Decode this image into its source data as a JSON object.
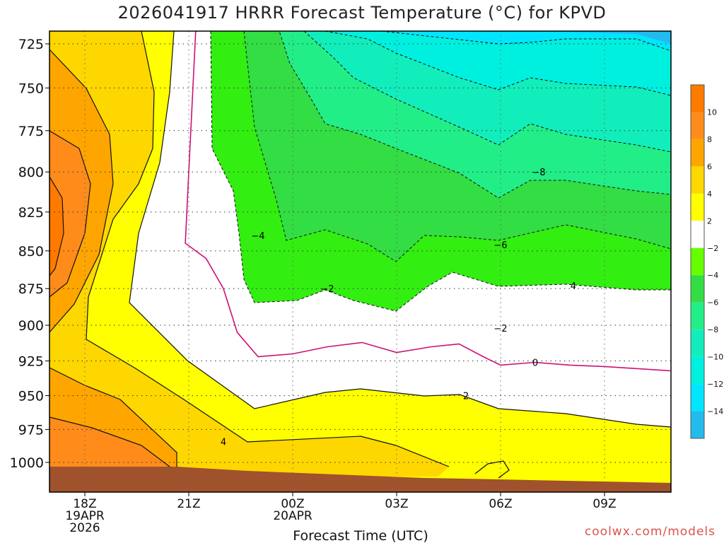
{
  "title": "2026041917 HRRR Forecast Temperature (°C) for KPVD",
  "credit": "coolwx.com/models",
  "chart_data": {
    "type": "contour",
    "title": "2026041917 HRRR Forecast Temperature (°C) for KPVD",
    "xlabel": "Forecast Time (UTC)",
    "ylabel": "",
    "y_scale": "log-pressure",
    "ylim": [
      1020,
      715
    ],
    "x_ticks": [
      {
        "h": 18,
        "label": "18Z",
        "sub1": "19APR",
        "sub2": "2026"
      },
      {
        "h": 21,
        "label": "21Z",
        "sub1": "",
        "sub2": ""
      },
      {
        "h": 24,
        "label": "00Z",
        "sub1": "20APR",
        "sub2": ""
      },
      {
        "h": 27,
        "label": "03Z",
        "sub1": "",
        "sub2": ""
      },
      {
        "h": 30,
        "label": "06Z",
        "sub1": "",
        "sub2": ""
      },
      {
        "h": 33,
        "label": "09Z",
        "sub1": "",
        "sub2": ""
      }
    ],
    "y_ticks": [
      "725",
      "750",
      "775",
      "800",
      "825",
      "850",
      "875",
      "900",
      "925",
      "950",
      "975",
      "1000"
    ],
    "colorbar_labels": [
      "10",
      "8",
      "6",
      "4",
      "2",
      "−2",
      "−4",
      "−6",
      "−8",
      "−10",
      "−12",
      "−14"
    ],
    "contour_labels": [
      {
        "text": "−8",
        "x": 31.1,
        "p": 800
      },
      {
        "text": "−6",
        "x": 30.0,
        "p": 846
      },
      {
        "text": "−4",
        "x": 23.0,
        "p": 840
      },
      {
        "text": "4",
        "x": 32.1,
        "p": 873
      },
      {
        "text": "−2",
        "x": 25.0,
        "p": 875
      },
      {
        "text": "−2",
        "x": 30.0,
        "p": 902
      },
      {
        "text": "0",
        "x": 31.0,
        "p": 926
      },
      {
        "text": "2",
        "x": 29.0,
        "p": 950
      },
      {
        "text": "4",
        "x": 22.0,
        "p": 984
      }
    ],
    "freezing_line": [
      [
        21.2,
        715
      ],
      [
        21.0,
        800
      ],
      [
        20.9,
        845
      ],
      [
        21.5,
        855
      ],
      [
        22.0,
        875
      ],
      [
        22.4,
        905
      ],
      [
        23.0,
        922
      ],
      [
        24.0,
        920
      ],
      [
        25.0,
        915
      ],
      [
        26.0,
        912
      ],
      [
        27.0,
        919
      ],
      [
        28.0,
        915
      ],
      [
        28.8,
        913
      ],
      [
        29.5,
        922
      ],
      [
        30.0,
        928
      ],
      [
        31.0,
        926
      ],
      [
        32.0,
        928
      ],
      [
        33.0,
        929
      ],
      [
        34.9,
        932
      ]
    ]
  }
}
